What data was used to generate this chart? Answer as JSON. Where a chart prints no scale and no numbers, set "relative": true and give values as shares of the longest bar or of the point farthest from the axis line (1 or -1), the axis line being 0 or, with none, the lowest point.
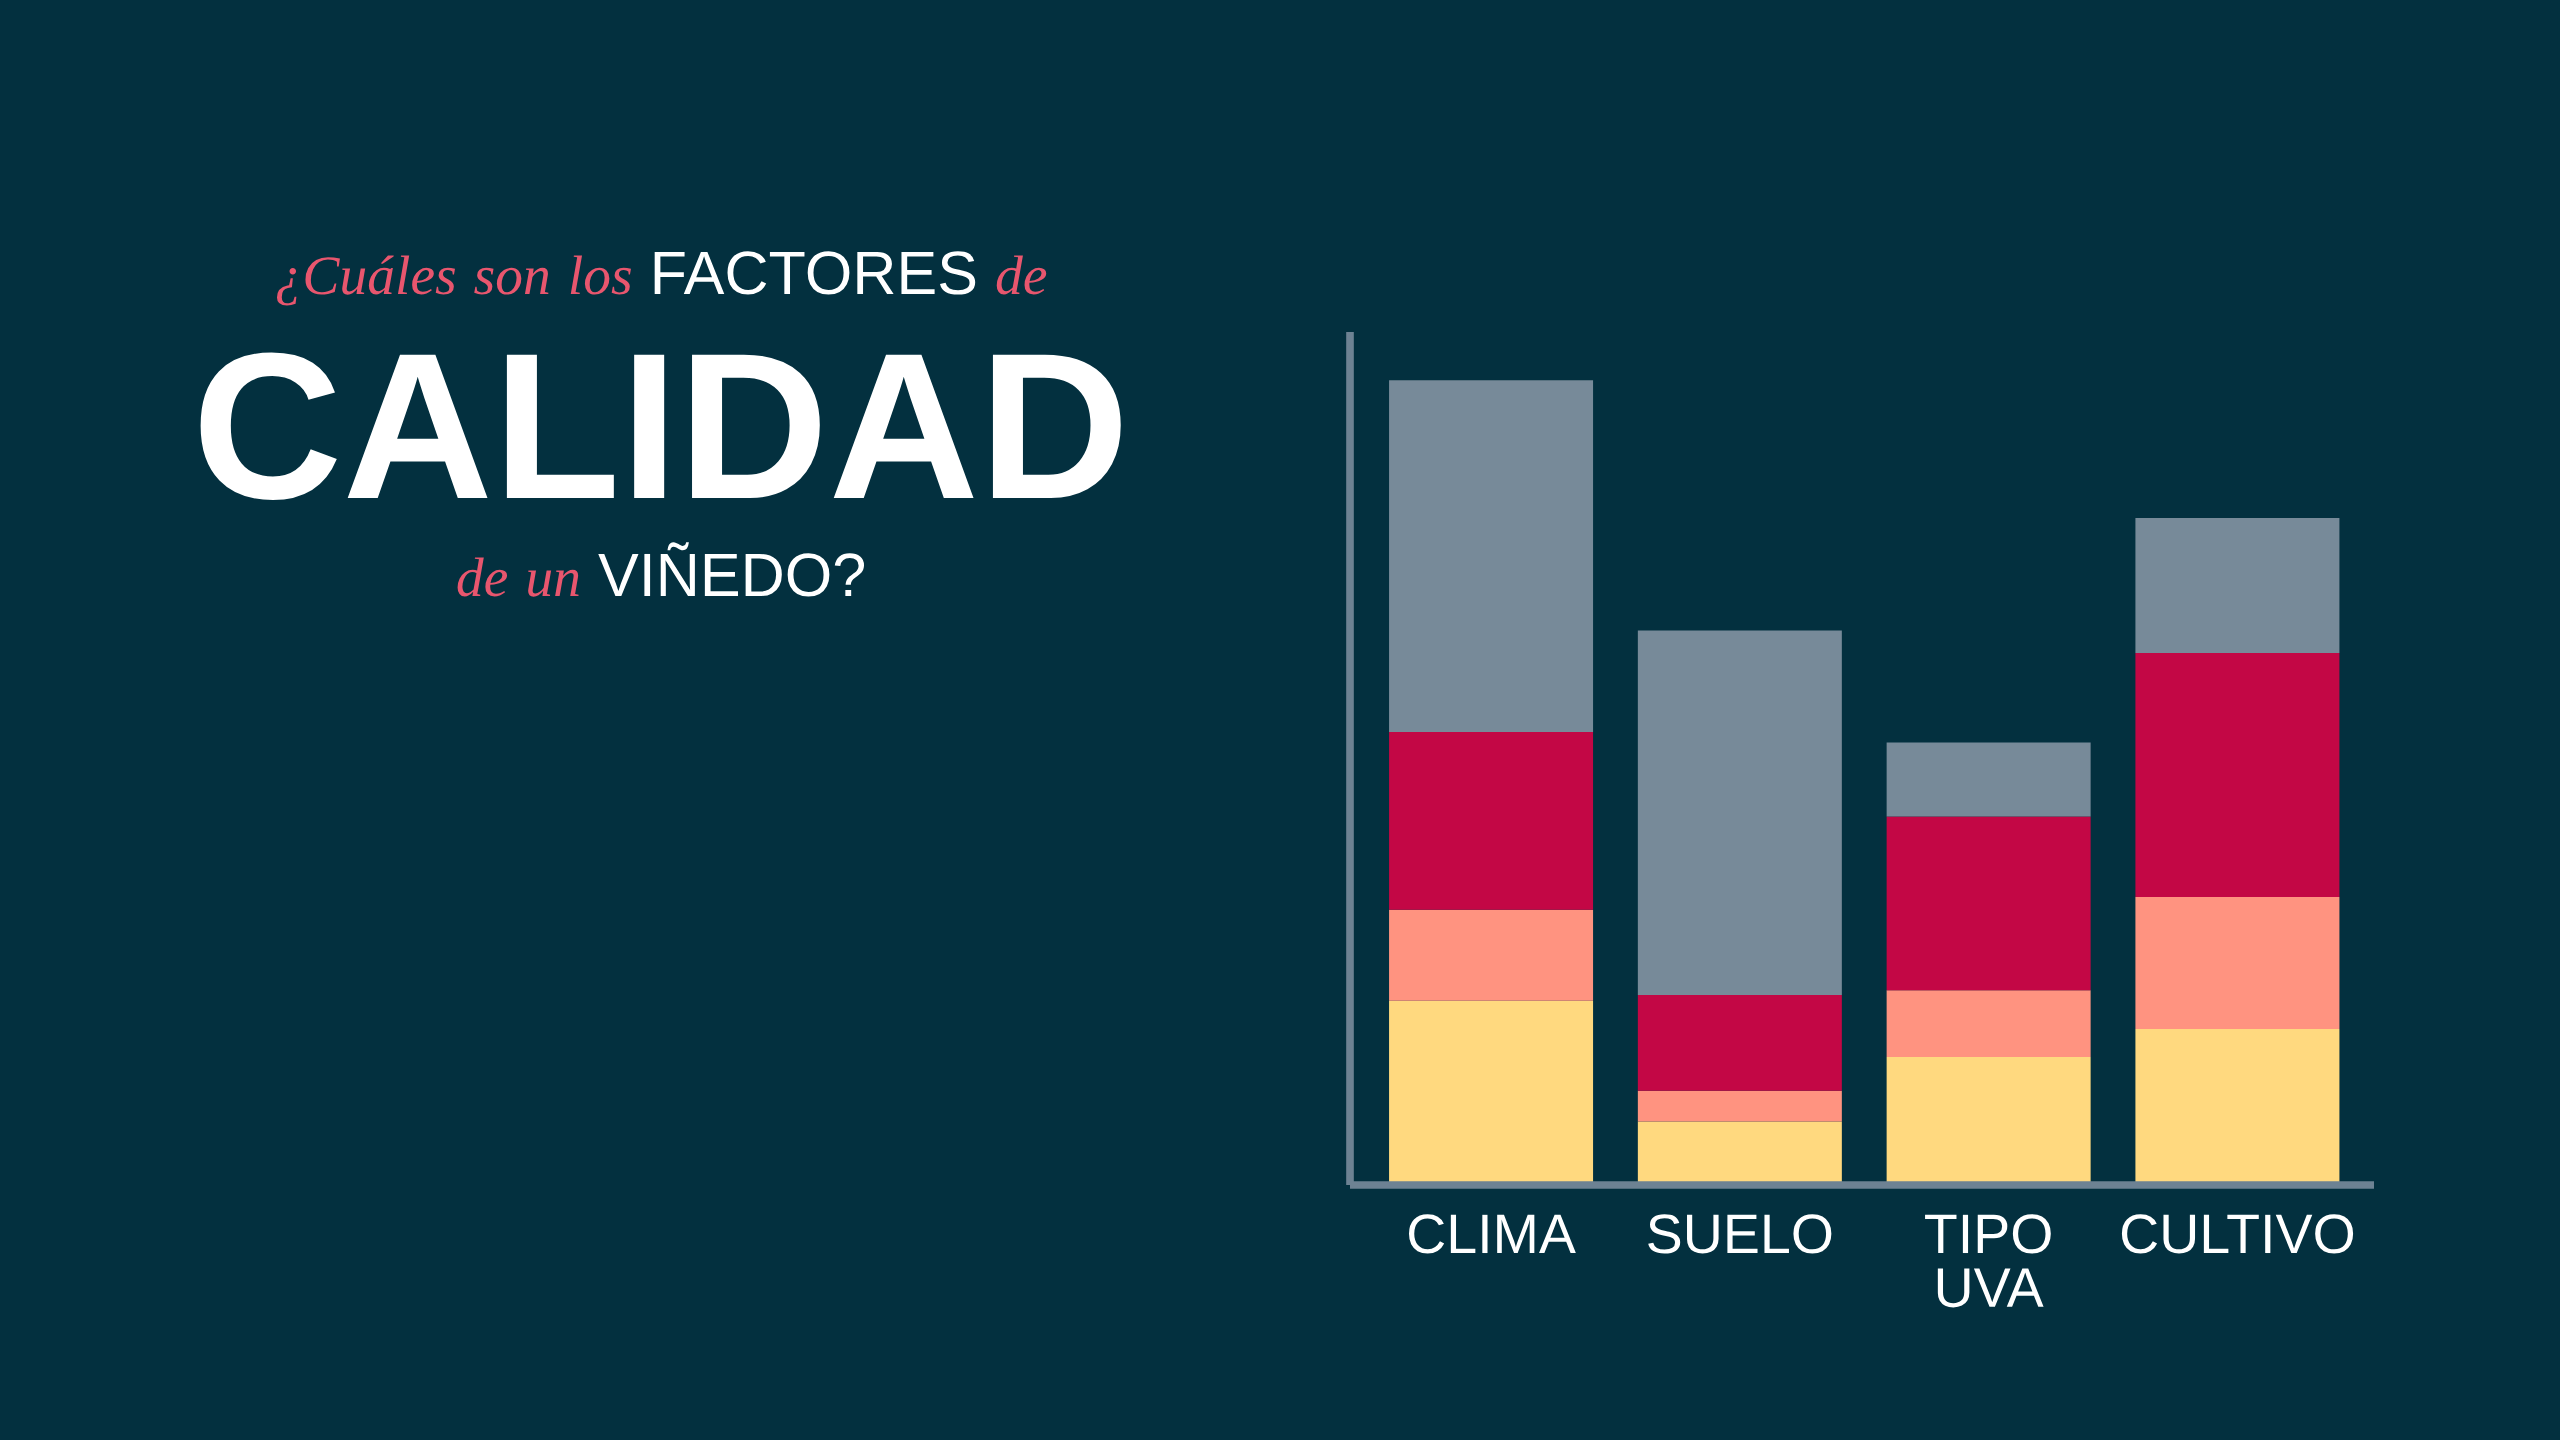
{
  "chart_data": {
    "type": "bar",
    "title": "¿Cuáles son los FACTORES de\nCALIDAD\nde un VIÑEDO?",
    "categories": [
      "CLIMA",
      "SUELO",
      "TIPO\nUVA",
      "CULTIVO"
    ],
    "stacked": true,
    "relative": true,
    "series": [
      {
        "color": "#ffd97f",
        "values": [
          0.229,
          0.079,
          0.159,
          0.194
        ]
      },
      {
        "color": "#ff9380",
        "values": [
          0.113,
          0.038,
          0.083,
          0.164
        ]
      },
      {
        "color": "#c30745",
        "values": [
          0.221,
          0.119,
          0.216,
          0.303
        ]
      },
      {
        "color": "#778a99",
        "values": [
          0.437,
          0.453,
          0.092,
          0.168
        ]
      }
    ]
  }
}
